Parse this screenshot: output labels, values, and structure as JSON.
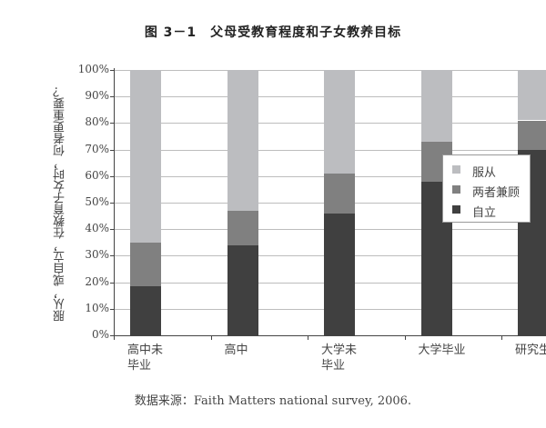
{
  "title": "图 3－1　父母受教育程度和子女教养目标",
  "ylabel": "服从，或自立，在教育子女时，何者更重要？",
  "source": "数据来源：Faith Matters national survey, 2006.",
  "colors": {
    "服从": "#bcbdc0",
    "两者兼顾": "#808080",
    "自立": "#404040"
  },
  "yticks": [
    "0%",
    "10%",
    "20%",
    "30%",
    "40%",
    "50%",
    "60%",
    "70%",
    "80%",
    "90%",
    "100%"
  ],
  "xlabels": [
    {
      "line1": "高中未",
      "line2": "毕业"
    },
    {
      "line1": "高中",
      "line2": ""
    },
    {
      "line1": "大学未",
      "line2": "毕业"
    },
    {
      "line1": "大学毕业",
      "line2": ""
    },
    {
      "line1": "研究生",
      "line2": ""
    }
  ],
  "legend": [
    "服从",
    "两者兼顾",
    "自立"
  ],
  "chart_data": {
    "type": "bar",
    "stacked": true,
    "title": "图 3－1　父母受教育程度和子女教养目标",
    "xlabel": "",
    "ylabel": "服从，或自立，在教育子女时，何者更重要？",
    "ylim": [
      0,
      100
    ],
    "yunit": "%",
    "grid": true,
    "legend_position": "right",
    "categories": [
      "高中未毕业",
      "高中",
      "大学未毕业",
      "大学毕业",
      "研究生"
    ],
    "series": [
      {
        "name": "自立",
        "values": [
          18.5,
          34,
          46,
          58,
          70
        ]
      },
      {
        "name": "两者兼顾",
        "values": [
          16.5,
          13,
          15,
          15,
          11
        ]
      },
      {
        "name": "服从",
        "values": [
          65,
          53,
          39,
          27,
          19
        ]
      }
    ],
    "source": "数据来源：Faith Matters national survey, 2006."
  }
}
